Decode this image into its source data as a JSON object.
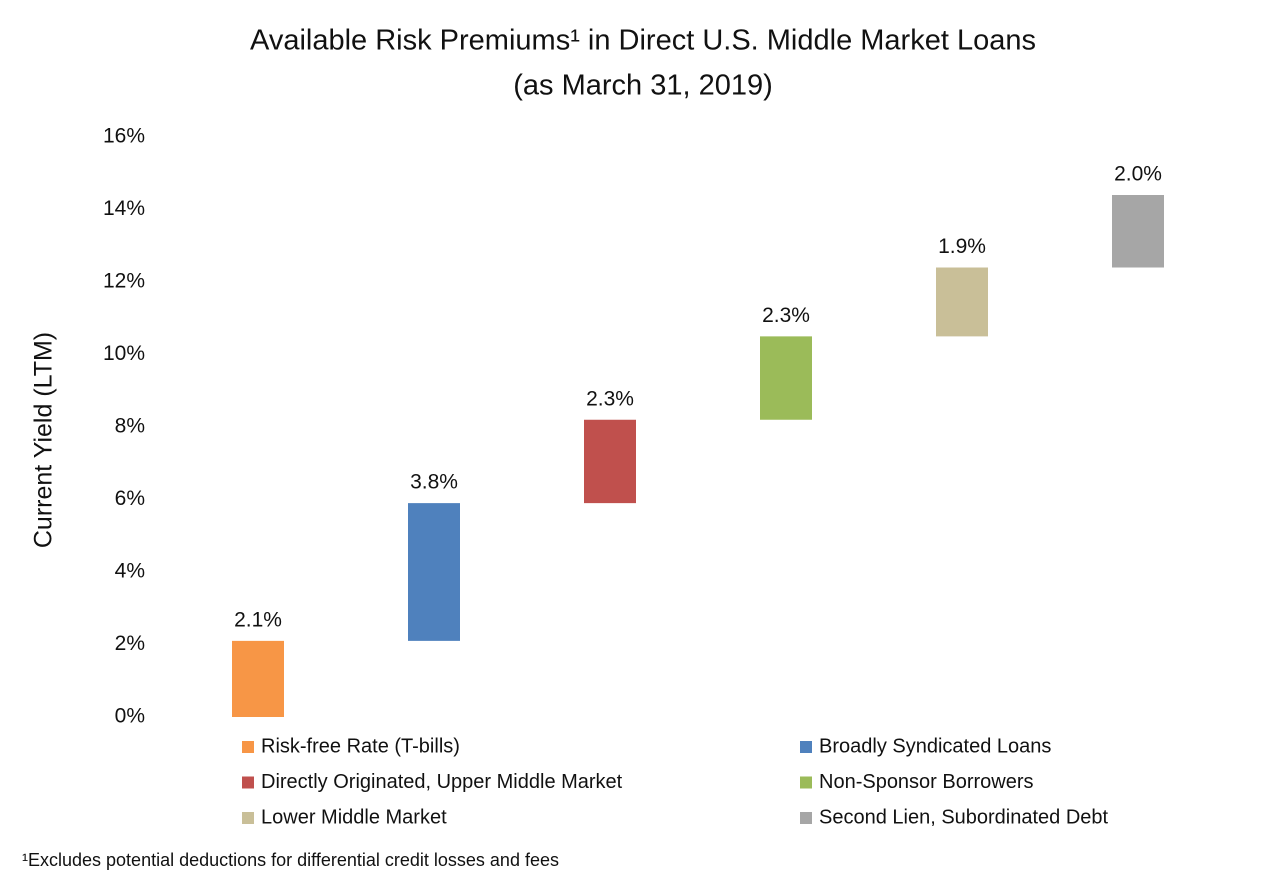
{
  "chart_data": {
    "type": "waterfall",
    "title": "Available Risk Premiums¹ in Direct U.S. Middle Market Loans",
    "subtitle": "(as March 31, 2019)",
    "y_label": "Current Yield (LTM)",
    "footnote": "¹Excludes potential deductions for differential credit losses and fees",
    "categories": [
      "Risk-free Rate (T-bills)",
      "Broadly Syndicated  Loans",
      "Directly Originated, Upper Middle Market",
      "Non-Sponsor Borrowers",
      "Lower Middle Market",
      "Second Lien, Subordinated Debt"
    ],
    "values": [
      2.1,
      3.8,
      2.3,
      2.3,
      1.9,
      2.0
    ],
    "value_labels": [
      "2.1%",
      "3.8%",
      "2.3%",
      "2.3%",
      "1.9%",
      "2.0%"
    ],
    "colors": [
      "#f79646",
      "#4f81bd",
      "#c0504d",
      "#9bbb59",
      "#c9bf98",
      "#a6a6a6"
    ],
    "ylim": [
      0,
      16
    ],
    "yticks": [
      {
        "value": 0,
        "label": "0%"
      },
      {
        "value": 2,
        "label": "2%"
      },
      {
        "value": 4,
        "label": "4%"
      },
      {
        "value": 6,
        "label": "6%"
      },
      {
        "value": 8,
        "label": "8%"
      },
      {
        "value": 10,
        "label": "10%"
      },
      {
        "value": 12,
        "label": "12%"
      },
      {
        "value": 14,
        "label": "14%"
      },
      {
        "value": 16,
        "label": "16%"
      }
    ],
    "grid": false
  }
}
